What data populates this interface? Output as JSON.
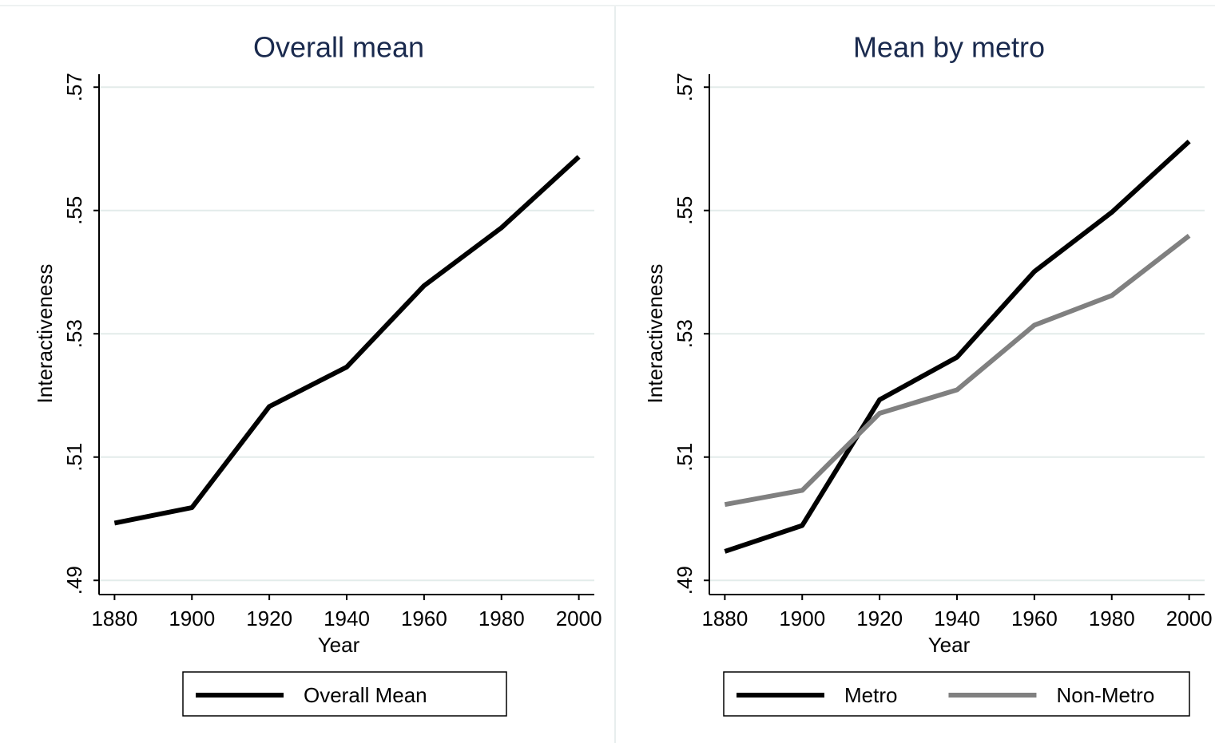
{
  "chart_data": [
    {
      "type": "line",
      "title": "Overall mean",
      "x_label": "Year",
      "y_label": "Interactiveness",
      "x": [
        1880,
        1900,
        1920,
        1940,
        1960,
        1980,
        2000
      ],
      "series": [
        {
          "name": "Overall Mean",
          "color": "#000000",
          "values": [
            0.4993,
            0.5018,
            0.5182,
            0.5246,
            0.5378,
            0.5472,
            0.5587
          ]
        }
      ],
      "xlim": [
        1876,
        2004
      ],
      "xticks": [
        1880,
        1900,
        1920,
        1940,
        1960,
        1980,
        2000
      ],
      "ylim": [
        0.4877,
        0.5721
      ],
      "yticks": [
        {
          "value": 0.49,
          "label": ".49"
        },
        {
          "value": 0.51,
          "label": ".51"
        },
        {
          "value": 0.53,
          "label": ".53"
        },
        {
          "value": 0.55,
          "label": ".55"
        },
        {
          "value": 0.57,
          "label": ".57"
        }
      ],
      "grid": true
    },
    {
      "type": "line",
      "title": "Mean by metro",
      "x_label": "Year",
      "y_label": "Interactiveness",
      "x": [
        1880,
        1900,
        1920,
        1940,
        1960,
        1980,
        2000
      ],
      "series": [
        {
          "name": "Metro",
          "color": "#000000",
          "values": [
            0.4947,
            0.4989,
            0.5193,
            0.5262,
            0.5401,
            0.5497,
            0.5612
          ]
        },
        {
          "name": "Non-Metro",
          "color": "#808080",
          "values": [
            0.5023,
            0.5046,
            0.5171,
            0.5209,
            0.5314,
            0.5362,
            0.5459
          ]
        }
      ],
      "xlim": [
        1876,
        2004
      ],
      "xticks": [
        1880,
        1900,
        1920,
        1940,
        1960,
        1980,
        2000
      ],
      "ylim": [
        0.4877,
        0.5721
      ],
      "yticks": [
        {
          "value": 0.49,
          "label": ".49"
        },
        {
          "value": 0.51,
          "label": ".51"
        },
        {
          "value": 0.53,
          "label": ".53"
        },
        {
          "value": 0.55,
          "label": ".55"
        },
        {
          "value": 0.57,
          "label": ".57"
        }
      ],
      "grid": true
    }
  ]
}
